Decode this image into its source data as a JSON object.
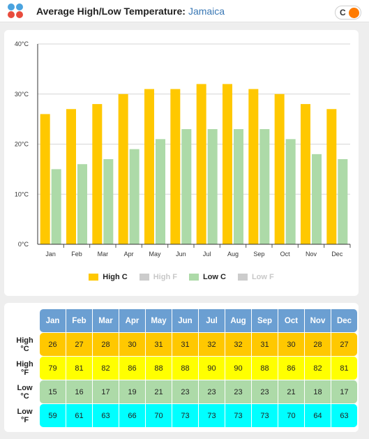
{
  "header": {
    "title": "Average High/Low Temperature:",
    "location": "Jamaica",
    "unit_toggle": "C"
  },
  "chart_data": {
    "type": "bar",
    "categories": [
      "Jan",
      "Feb",
      "Mar",
      "Apr",
      "May",
      "Jun",
      "Jul",
      "Aug",
      "Sep",
      "Oct",
      "Nov",
      "Dec"
    ],
    "series": [
      {
        "name": "High C",
        "values": [
          26,
          27,
          28,
          30,
          31,
          31,
          32,
          32,
          31,
          30,
          28,
          27
        ],
        "color": "#ffc800",
        "visible": true
      },
      {
        "name": "High F",
        "values": [
          79,
          81,
          82,
          86,
          88,
          88,
          90,
          90,
          88,
          86,
          82,
          81
        ],
        "color": "#cccccc",
        "visible": false
      },
      {
        "name": "Low C",
        "values": [
          15,
          16,
          17,
          19,
          21,
          23,
          23,
          23,
          23,
          21,
          18,
          17
        ],
        "color": "#addaa8",
        "visible": true
      },
      {
        "name": "Low F",
        "values": [
          59,
          61,
          63,
          66,
          70,
          73,
          73,
          73,
          73,
          70,
          64,
          63
        ],
        "color": "#cccccc",
        "visible": false
      }
    ],
    "y_ticks": [
      "0°C",
      "10°C",
      "20°C",
      "30°C",
      "40°C"
    ],
    "ylim": [
      0,
      40
    ],
    "grid": true,
    "legend_position": "bottom"
  },
  "table": {
    "rows": [
      {
        "label_top": "High",
        "label_bottom": "°C",
        "class": "hc",
        "values": [
          26,
          27,
          28,
          30,
          31,
          31,
          32,
          32,
          31,
          30,
          28,
          27
        ]
      },
      {
        "label_top": "High",
        "label_bottom": "°F",
        "class": "hf",
        "values": [
          79,
          81,
          82,
          86,
          88,
          88,
          90,
          90,
          88,
          86,
          82,
          81
        ]
      },
      {
        "label_top": "Low",
        "label_bottom": "°C",
        "class": "lc",
        "values": [
          15,
          16,
          17,
          19,
          21,
          23,
          23,
          23,
          23,
          21,
          18,
          17
        ]
      },
      {
        "label_top": "Low",
        "label_bottom": "°F",
        "class": "lf",
        "values": [
          59,
          61,
          63,
          66,
          70,
          73,
          73,
          73,
          73,
          70,
          64,
          63
        ]
      }
    ]
  },
  "colors": {
    "high_c": "#ffc800",
    "low_c": "#addaa8",
    "hidden_series": "#cccccc",
    "month_header": "#6b9fd2",
    "location_link": "#3a78b5",
    "toggle_knob": "#ff7b00"
  }
}
